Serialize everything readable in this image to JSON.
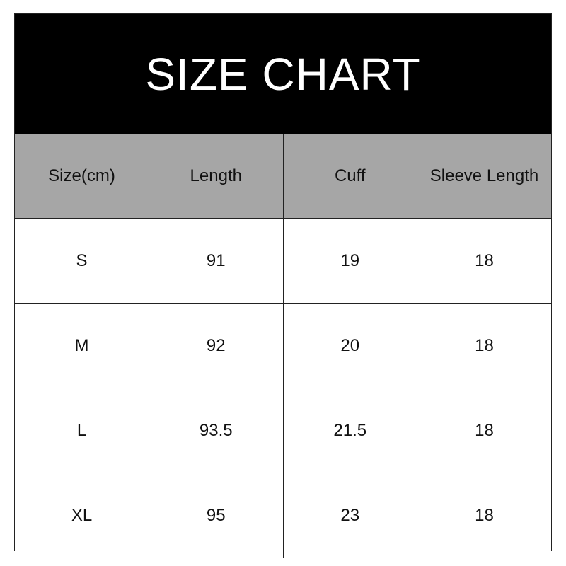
{
  "title": "SIZE CHART",
  "colors": {
    "header_bg": "#000000",
    "column_header_bg": "#a6a6a6"
  },
  "columns": [
    "Size(cm)",
    "Length",
    "Cuff",
    "Sleeve Length"
  ],
  "rows": [
    [
      "S",
      "91",
      "19",
      "18"
    ],
    [
      "M",
      "92",
      "20",
      "18"
    ],
    [
      "L",
      "93.5",
      "21.5",
      "18"
    ],
    [
      "XL",
      "95",
      "23",
      "18"
    ]
  ]
}
